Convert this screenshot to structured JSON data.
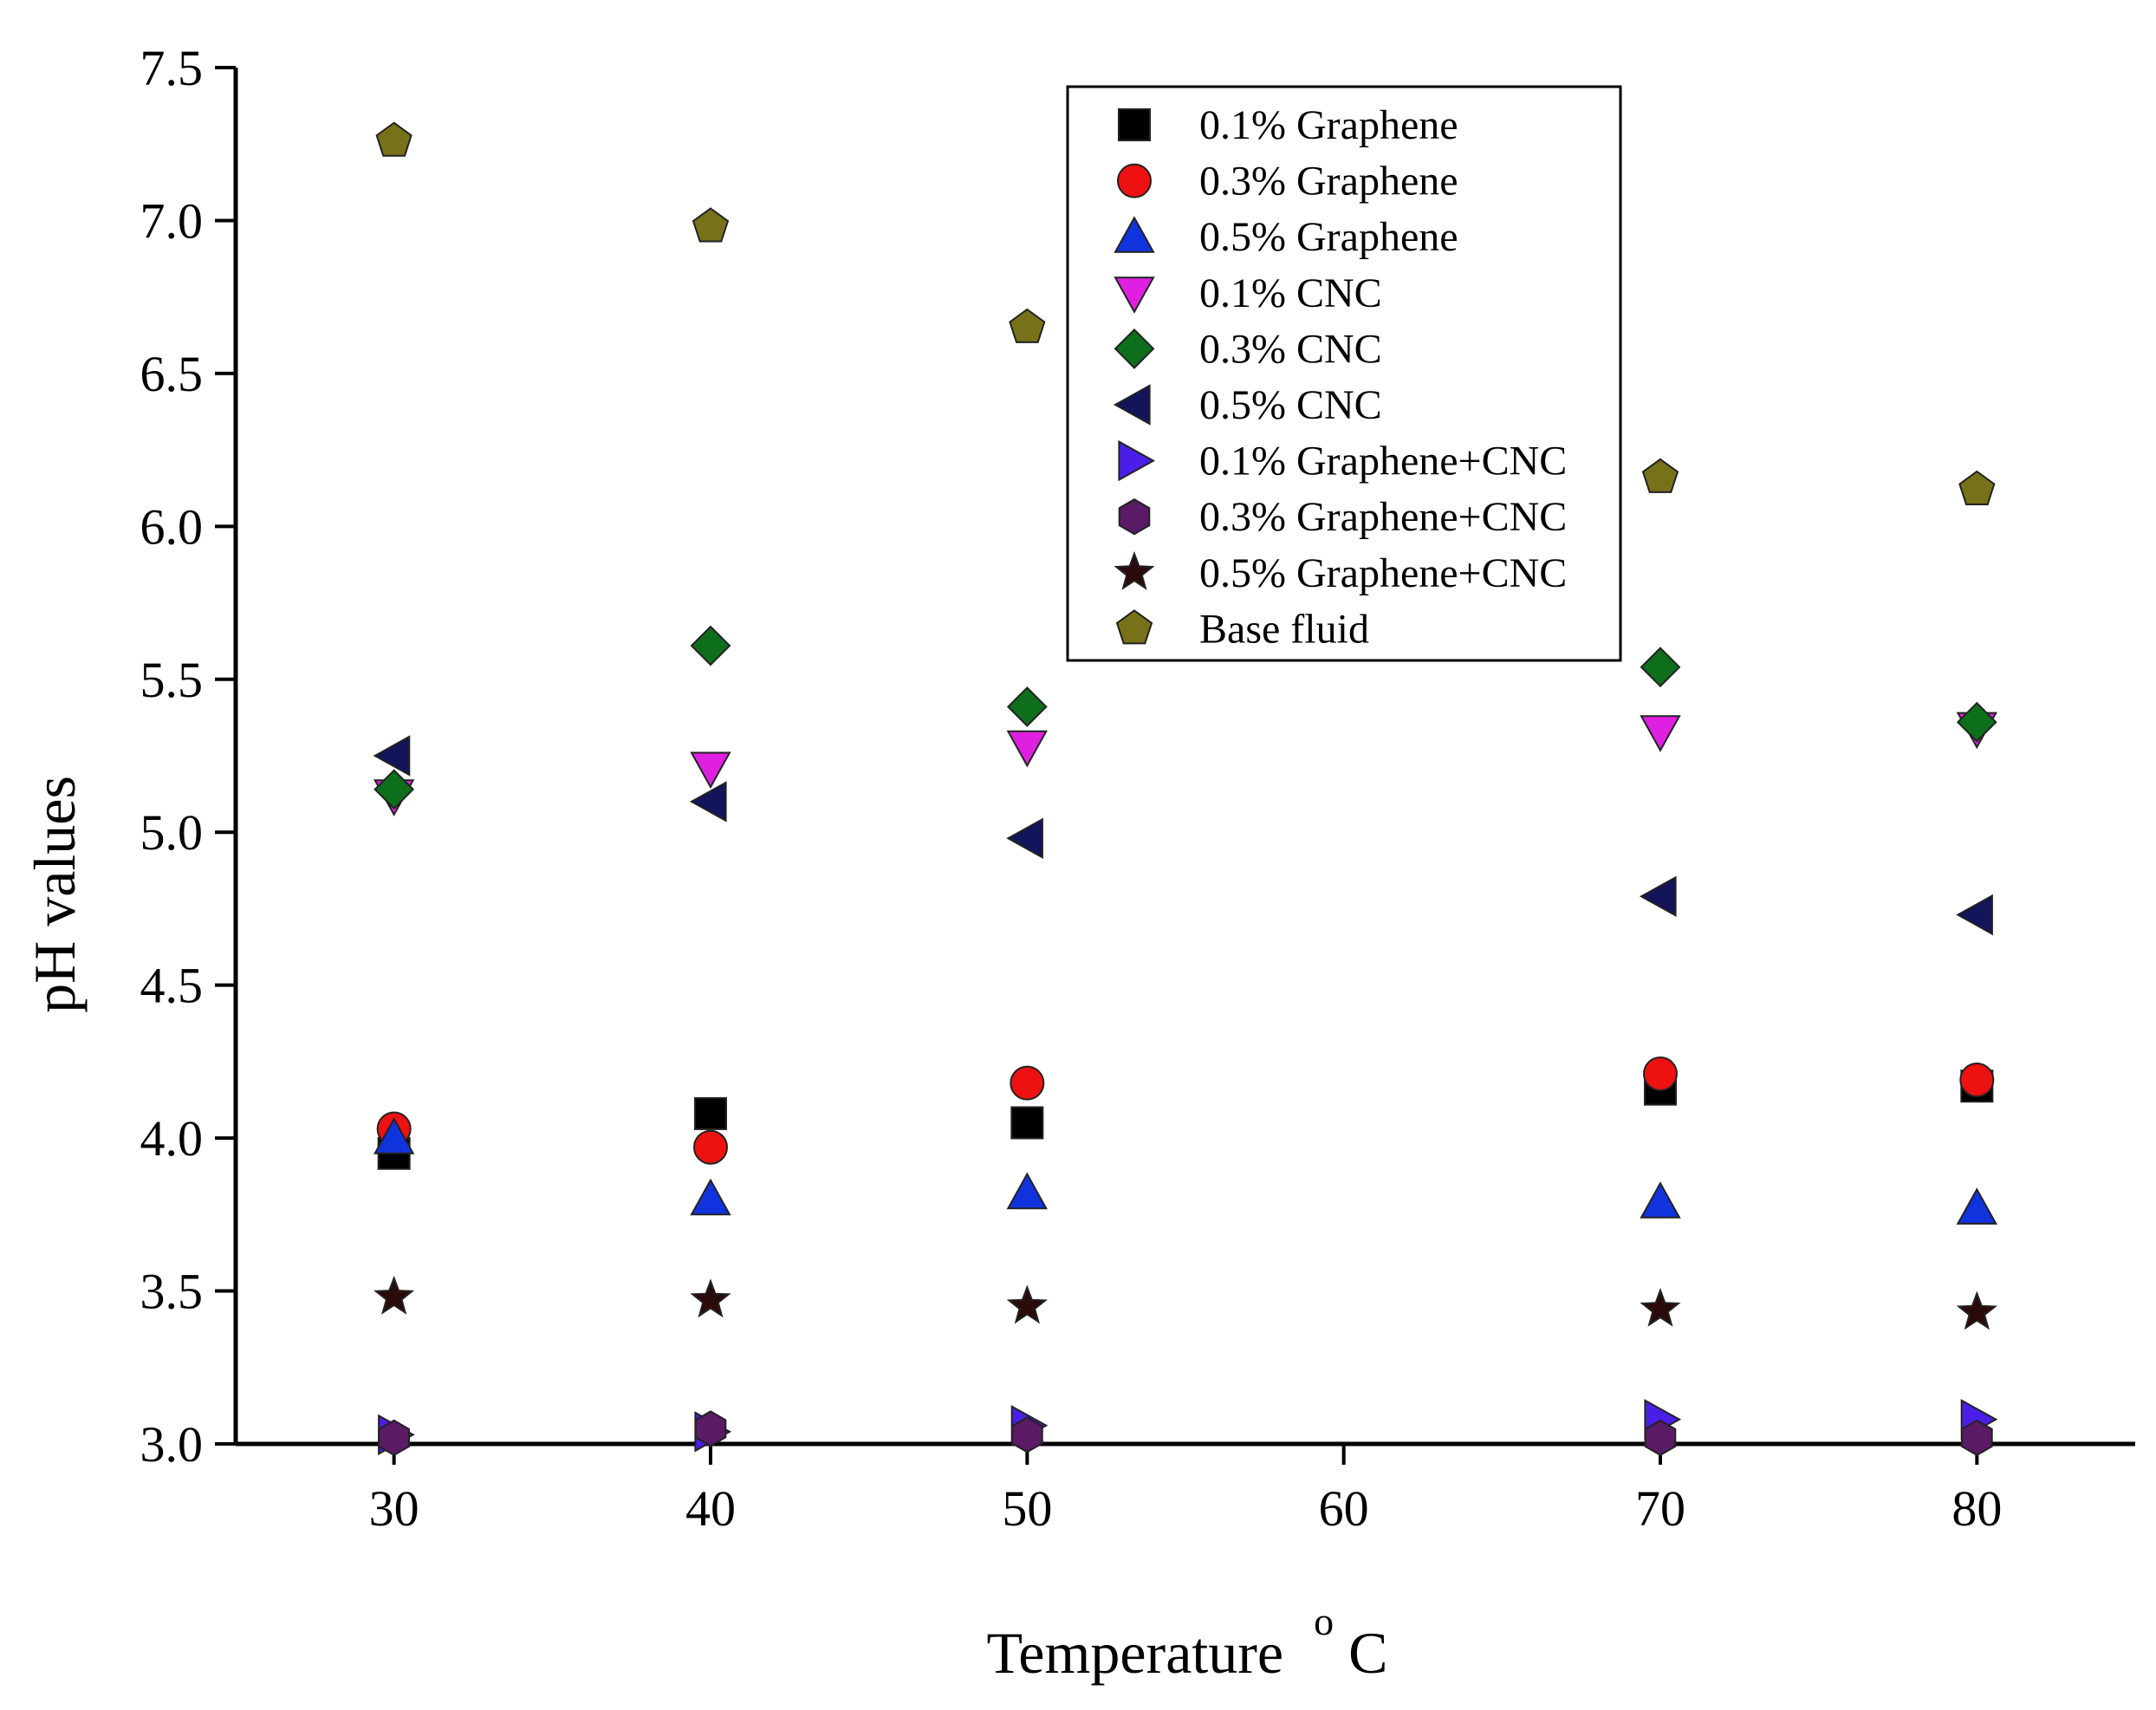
{
  "chart_data": {
    "type": "scatter",
    "title": "",
    "xlabel": "Temperature",
    "xlabel_unit": "C",
    "xlabel_superscript": "o",
    "ylabel": "pH values",
    "xlim": [
      25,
      85
    ],
    "ylim": [
      3.0,
      7.5
    ],
    "xticks": [
      30,
      40,
      50,
      60,
      70,
      80
    ],
    "yticks": [
      3.0,
      3.5,
      4.0,
      4.5,
      5.0,
      5.5,
      6.0,
      6.5,
      7.0,
      7.5
    ],
    "ytick_labels": [
      "3.0",
      "3.5",
      "4.0",
      "4.5",
      "5.0",
      "5.5",
      "6.0",
      "6.5",
      "7.0",
      "7.5"
    ],
    "x": [
      30,
      40,
      50,
      70,
      80
    ],
    "legend_position": "top-center",
    "series": [
      {
        "name": "0.1% Graphene",
        "marker": "square",
        "color": "#000000",
        "values": [
          3.95,
          4.08,
          4.05,
          4.16,
          4.17
        ]
      },
      {
        "name": "0.3% Graphene",
        "marker": "circle",
        "color": "#ee1111",
        "values": [
          4.03,
          3.97,
          4.18,
          4.21,
          4.19
        ]
      },
      {
        "name": "0.5% Graphene",
        "marker": "triangle-up",
        "color": "#1133dd",
        "values": [
          4.0,
          3.8,
          3.82,
          3.79,
          3.77
        ]
      },
      {
        "name": "0.1% CNC",
        "marker": "triangle-down",
        "color": "#e020e0",
        "values": [
          5.12,
          5.21,
          5.28,
          5.33,
          5.34
        ]
      },
      {
        "name": "0.3% CNC",
        "marker": "diamond",
        "color": "#0d6e1c",
        "values": [
          5.14,
          5.61,
          5.41,
          5.54,
          5.36
        ]
      },
      {
        "name": "0.5% CNC",
        "marker": "triangle-left",
        "color": "#14145a",
        "values": [
          5.25,
          5.1,
          4.98,
          4.79,
          4.73
        ]
      },
      {
        "name": "0.1% Graphene+CNC",
        "marker": "triangle-right",
        "color": "#4a1ee6",
        "values": [
          3.03,
          3.04,
          3.06,
          3.08,
          3.08
        ]
      },
      {
        "name": "0.3% Graphene+CNC",
        "marker": "hexagon",
        "color": "#5a1a66",
        "values": [
          3.02,
          3.05,
          3.03,
          3.02,
          3.02
        ]
      },
      {
        "name": "0.5% Graphene+CNC",
        "marker": "star",
        "color": "#2a0a0a",
        "values": [
          3.48,
          3.47,
          3.45,
          3.44,
          3.43
        ]
      },
      {
        "name": "Base fluid",
        "marker": "pentagon",
        "color": "#77721a",
        "values": [
          7.26,
          6.98,
          6.65,
          6.16,
          6.12
        ]
      }
    ]
  }
}
